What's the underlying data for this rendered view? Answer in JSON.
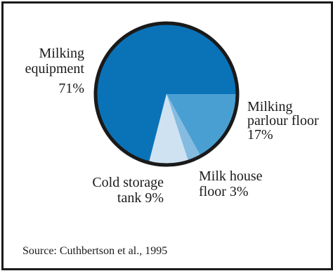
{
  "chart_data": {
    "type": "pie",
    "source": "Source: Cuthbertson et al., 1995",
    "colors": {
      "outline": "#1a1a1a",
      "frame": "#1a1a1a"
    },
    "slices": [
      {
        "lines": [
          "Milking",
          "equipment",
          "71%"
        ],
        "value": 71,
        "color": "#0a73b8"
      },
      {
        "lines": [
          "Milking",
          "parlour floor",
          "17%"
        ],
        "value": 17,
        "color": "#4a9fd2"
      },
      {
        "lines": [
          "Milk house",
          "floor 3%"
        ],
        "value": 3,
        "color": "#85bbe0"
      },
      {
        "lines": [
          "Cold storage",
          "tank 9%"
        ],
        "value": 9,
        "color": "#cfe2f2"
      }
    ]
  }
}
